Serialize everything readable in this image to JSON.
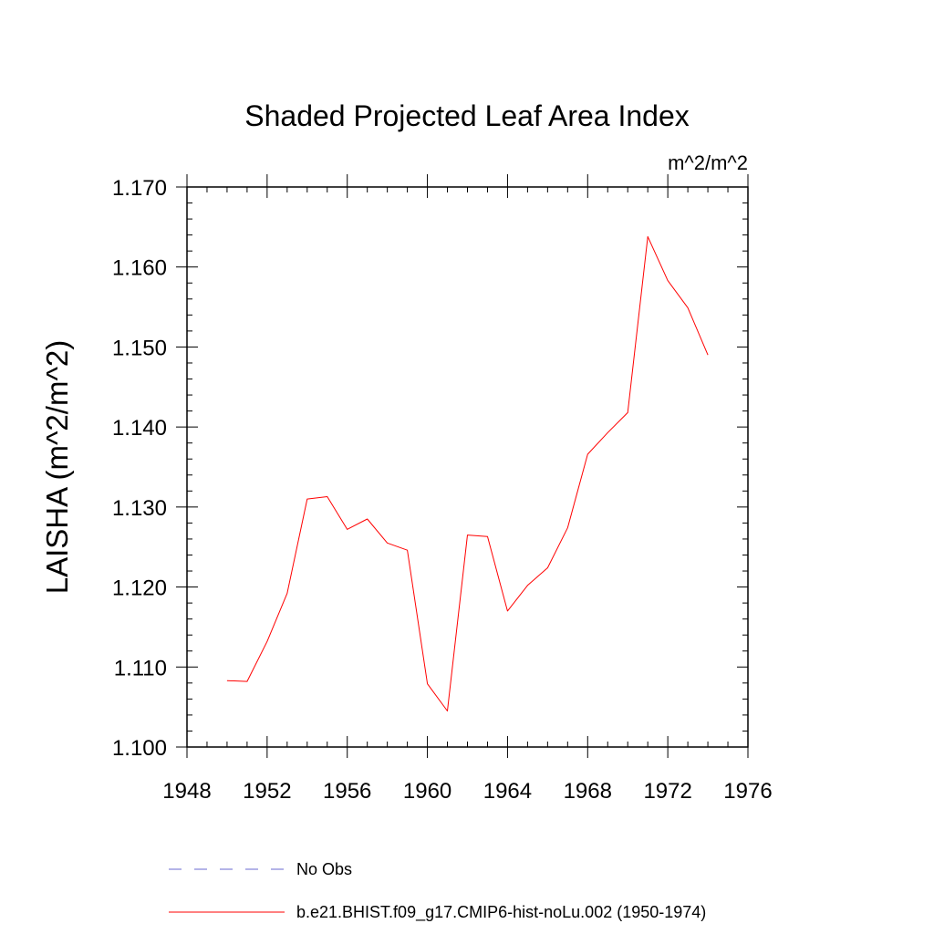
{
  "chart_data": {
    "type": "line",
    "title": "Shaded Projected Leaf Area Index",
    "units_label": "m^2/m^2",
    "ylabel": "LAISHA  (m^2/m^2)",
    "xlabel": "",
    "xlim": [
      1948,
      1976
    ],
    "ylim": [
      1.1,
      1.17
    ],
    "x_ticks": [
      1948,
      1952,
      1956,
      1960,
      1964,
      1968,
      1972,
      1976
    ],
    "x_tick_labels": [
      "1948",
      "1952",
      "1956",
      "1960",
      "1964",
      "1968",
      "1972",
      "1976"
    ],
    "y_ticks": [
      1.1,
      1.11,
      1.12,
      1.13,
      1.14,
      1.15,
      1.16,
      1.17
    ],
    "y_tick_labels": [
      "1.100",
      "1.110",
      "1.120",
      "1.130",
      "1.140",
      "1.150",
      "1.160",
      "1.170"
    ],
    "grid": false,
    "legend_position": "bottom",
    "series": [
      {
        "name": "b.e21.BHIST.f09_g17.CMIP6-hist-noLu.002 (1950-1974)",
        "color": "#ff0000",
        "dash": "solid",
        "x": [
          1950,
          1951,
          1952,
          1953,
          1954,
          1955,
          1956,
          1957,
          1958,
          1959,
          1960,
          1961,
          1962,
          1963,
          1964,
          1965,
          1966,
          1967,
          1968,
          1969,
          1970,
          1971,
          1972,
          1973,
          1974
        ],
        "y": [
          1.1083,
          1.1082,
          1.1132,
          1.1192,
          1.131,
          1.1313,
          1.1272,
          1.1285,
          1.1255,
          1.1246,
          1.1079,
          1.1045,
          1.1265,
          1.1263,
          1.117,
          1.1202,
          1.1224,
          1.1274,
          1.1366,
          1.1393,
          1.1418,
          1.1638,
          1.1583,
          1.1549,
          1.149
        ]
      }
    ],
    "legend": [
      {
        "label": "No Obs",
        "color": "#6a6ad0",
        "dash": "dashed"
      },
      {
        "label": "b.e21.BHIST.f09_g17.CMIP6-hist-noLu.002 (1950-1974)",
        "color": "#ff0000",
        "dash": "solid"
      }
    ]
  }
}
